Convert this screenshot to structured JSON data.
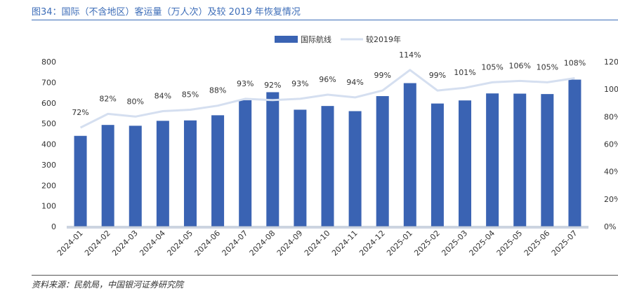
{
  "header": {
    "title": "图34：国际（不含地区）客运量（万人次）及较 2019 年恢复情况"
  },
  "footer": {
    "source": "资料来源：民航局，中国银河证券研究院"
  },
  "colors": {
    "bar": "#3a63b3",
    "line": "#d5dff0",
    "title": "#3d6db8"
  },
  "chart_data": {
    "type": "bar",
    "categories": [
      "2024-01",
      "2024-02",
      "2024-03",
      "2024-04",
      "2024-05",
      "2024-06",
      "2024-07",
      "2024-08",
      "2024-09",
      "2024-10",
      "2024-11",
      "2024-12",
      "2025-01",
      "2025-02",
      "2025-03",
      "2025-04",
      "2025-05",
      "2025-06",
      "2025-07"
    ],
    "series": [
      {
        "name": "国际航线",
        "type": "bar",
        "axis": "left",
        "values": [
          440,
          493,
          489,
          513,
          515,
          540,
          613,
          652,
          567,
          585,
          560,
          633,
          696,
          597,
          612,
          646,
          645,
          643,
          713
        ]
      },
      {
        "name": "较2019年",
        "type": "line",
        "axis": "right",
        "values": [
          72,
          82,
          80,
          84,
          85,
          88,
          93,
          92,
          93,
          96,
          94,
          99,
          114,
          99,
          101,
          105,
          106,
          105,
          108
        ],
        "labels": [
          "72%",
          "82%",
          "80%",
          "84%",
          "85%",
          "88%",
          "93%",
          "92%",
          "93%",
          "96%",
          "94%",
          "99%",
          "114%",
          "99%",
          "101%",
          "105%",
          "106%",
          "105%",
          "108%"
        ]
      }
    ],
    "ylim": [
      0,
      800
    ],
    "yticks": [
      "0",
      "100",
      "200",
      "300",
      "400",
      "500",
      "600",
      "700",
      "800"
    ],
    "y2lim": [
      0,
      120
    ],
    "y2ticks": [
      "0%",
      "20%",
      "40%",
      "60%",
      "80%",
      "100%",
      "120%"
    ],
    "legend_position": "top-center",
    "grid": false
  }
}
